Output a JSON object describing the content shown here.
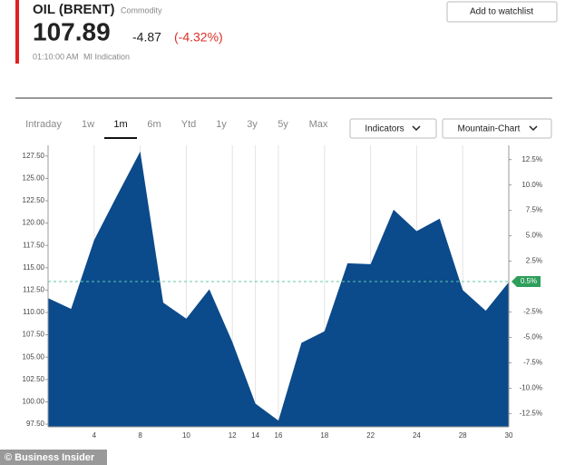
{
  "header": {
    "title": "OIL (BRENT)",
    "category": "Commodity",
    "price": 107.89,
    "change": -4.87,
    "change_percent": "(-4.32%)",
    "time": "01:10:00 AM",
    "source": "MI Indication",
    "watchlist_button": "Add to watchlist"
  },
  "tabs": [
    "Intraday",
    "1w",
    "1m",
    "6m",
    "Ytd",
    "1y",
    "3y",
    "5y",
    "Max"
  ],
  "active_tab": "1m",
  "dropdowns": [
    "Indicators",
    "Mountain-Chart"
  ],
  "footer": "© Business Insider",
  "chart_data": {
    "type": "area",
    "categories": [
      null,
      null,
      "4",
      null,
      "8",
      null,
      "10",
      null,
      "12",
      "14",
      "16",
      null,
      "18",
      null,
      "22",
      null,
      "24",
      null,
      "28",
      null,
      "30"
    ],
    "values": [
      111.6,
      110.4,
      118.1,
      123.1,
      128.0,
      111.1,
      109.3,
      112.6,
      106.7,
      99.8,
      97.9,
      106.6,
      107.9,
      115.5,
      115.4,
      121.5,
      119.1,
      120.5,
      112.5,
      110.2,
      113.4
    ],
    "color": "#0b4a8b",
    "ylim": [
      97.2,
      128.7
    ],
    "yticks": [
      {
        "value": 97.5,
        "label": "97.50"
      },
      {
        "value": 100,
        "label": "100.00"
      },
      {
        "value": 102.5,
        "label": "102.50"
      },
      {
        "value": 105,
        "label": "105.00"
      },
      {
        "value": 107.5,
        "label": "107.50"
      },
      {
        "value": 110,
        "label": "110.00"
      },
      {
        "value": 112.5,
        "label": "112.50"
      },
      {
        "value": 115,
        "label": "115.00"
      },
      {
        "value": 117.5,
        "label": "117.50"
      },
      {
        "value": 120,
        "label": "120.00"
      },
      {
        "value": 122.5,
        "label": "122.50"
      },
      {
        "value": 125,
        "label": "125.00"
      },
      {
        "value": 127.5,
        "label": "127.50"
      }
    ],
    "y2lim": [
      -13.8,
      13.9
    ],
    "y2ticks": [
      {
        "value": 12.5,
        "label": "12.5%"
      },
      {
        "value": 10,
        "label": "10.0%"
      },
      {
        "value": 7.5,
        "label": "7.5%"
      },
      {
        "value": 5,
        "label": "5.0%"
      },
      {
        "value": 2.5,
        "label": "2.5%"
      },
      {
        "value": -2.5,
        "label": "-2.5%"
      },
      {
        "value": -5,
        "label": "-5.0%"
      },
      {
        "value": -7.5,
        "label": "-7.5%"
      },
      {
        "value": -10,
        "label": "-10.0%"
      },
      {
        "value": -12.5,
        "label": "-12.5%"
      }
    ],
    "current_marker": {
      "value": 0.5,
      "label": "0.5%",
      "color": "#2e9e5b"
    },
    "grid": "x"
  }
}
